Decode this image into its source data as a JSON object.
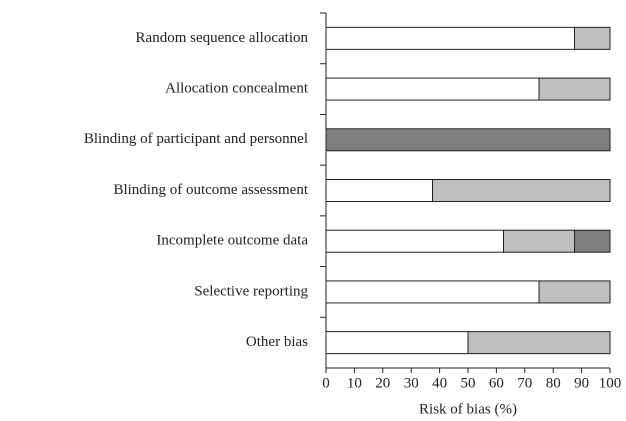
{
  "chart_data": {
    "type": "stacked_bar_horizontal",
    "categories": [
      "Random sequence allocation",
      "Allocation concealment",
      "Blinding of participant and personnel",
      "Blinding of outcome assessment",
      "Incomplete outcome data",
      "Selective reporting",
      "Other bias"
    ],
    "series": [
      {
        "color": "#ffffff",
        "values": [
          87.5,
          75,
          0,
          37.5,
          62.5,
          75,
          50
        ]
      },
      {
        "color": "#bfbfbf",
        "values": [
          12.5,
          25,
          0,
          62.5,
          25,
          25,
          50
        ]
      },
      {
        "color": "#7f7f7f",
        "values": [
          0,
          0,
          100,
          0,
          12.5,
          0,
          0
        ]
      }
    ],
    "xlabel": "Risk of bias (%)",
    "xlim": [
      0,
      100
    ],
    "xticks": [
      0,
      10,
      20,
      30,
      40,
      50,
      60,
      70,
      80,
      90,
      100
    ]
  }
}
